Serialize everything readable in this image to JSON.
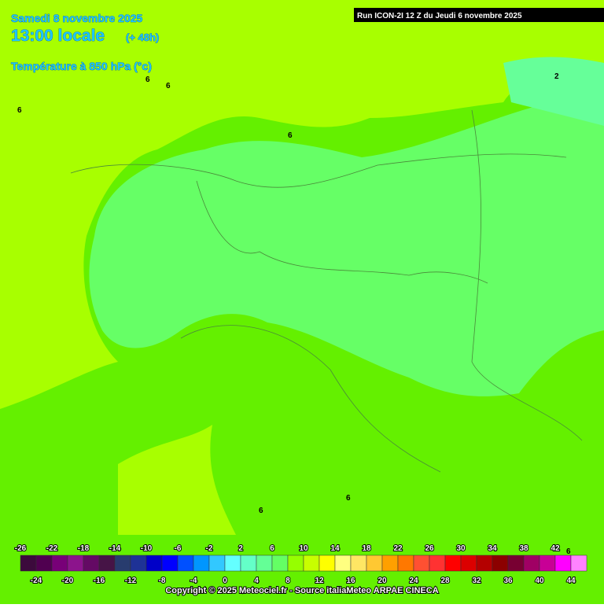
{
  "header": {
    "date": "Samedi 8 novembre 2025",
    "time": "13:00 locale",
    "lead": "(+ 48h)",
    "field": "Température à 850 hPa (°c)",
    "run": "Run ICON-2I 12 Z du Jeudi 6 novembre 2025"
  },
  "map": {
    "contour_labels": [
      "6",
      "6",
      "6",
      "6",
      "2",
      "6",
      "6",
      "6"
    ]
  },
  "legend": {
    "values": [
      -26,
      -24,
      -22,
      -20,
      -18,
      -16,
      -14,
      -12,
      -10,
      -8,
      -6,
      -4,
      -2,
      0,
      2,
      4,
      6,
      8,
      10,
      12,
      14,
      16,
      18,
      20,
      22,
      24,
      26,
      28,
      30,
      32,
      34,
      36,
      38,
      40,
      42,
      44
    ],
    "colors": [
      "#3c0a3c",
      "#500050",
      "#780078",
      "#8c148c",
      "#640a64",
      "#461446",
      "#283c6e",
      "#1e3296",
      "#0000c8",
      "#0000ff",
      "#0050ff",
      "#0096ff",
      "#32c8ff",
      "#64ffff",
      "#64ffc8",
      "#64ff96",
      "#64ff64",
      "#96ff00",
      "#c8ff00",
      "#ffff00",
      "#ffff80",
      "#ffe664",
      "#ffc832",
      "#ffa000",
      "#ff7800",
      "#ff5032",
      "#ff3232",
      "#ff0000",
      "#dc0000",
      "#b40000",
      "#8c0000",
      "#780032",
      "#a00064",
      "#c80096",
      "#ff00ff",
      "#ff82ff"
    ]
  },
  "footer": {
    "copyright": "Copyright © 2025 Meteociel.fr - Source italiaMeteo ARPAE CINECA"
  }
}
